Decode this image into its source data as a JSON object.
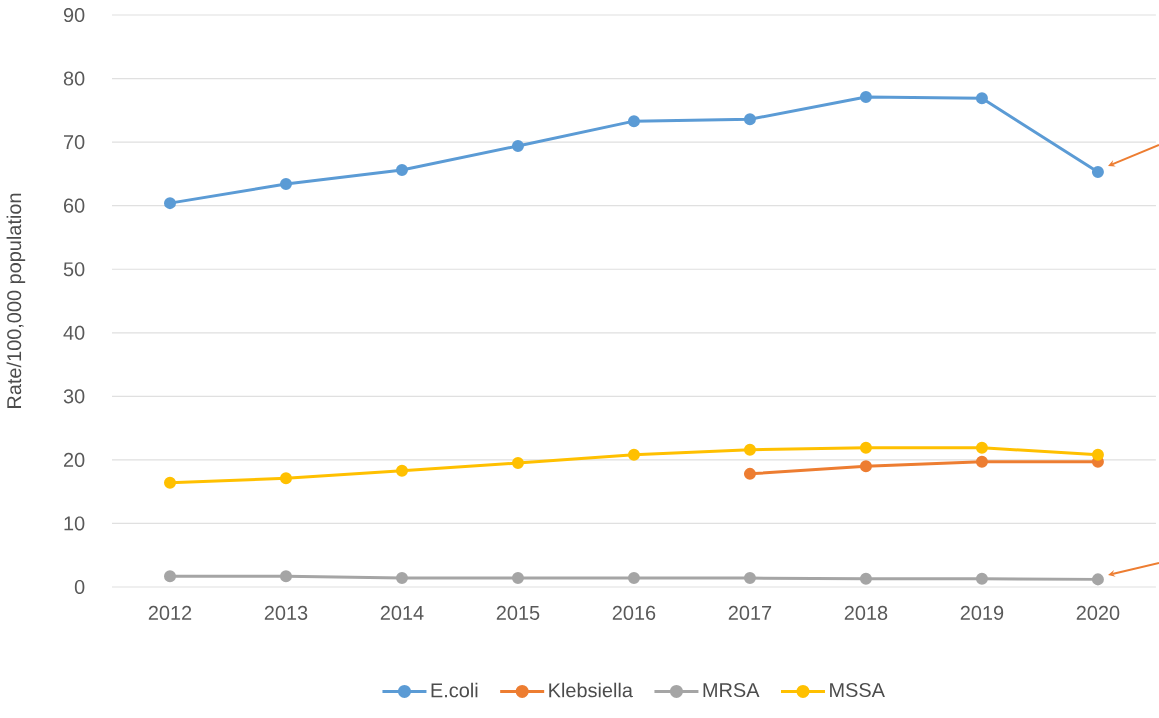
{
  "chart_data": {
    "type": "line",
    "ylabel": "Rate/100,000 population",
    "categories": [
      "2012",
      "2013",
      "2014",
      "2015",
      "2016",
      "2017",
      "2018",
      "2019",
      "2020"
    ],
    "series": [
      {
        "name": "E.coli",
        "color": "#5b9bd5",
        "values": [
          60.4,
          63.4,
          65.6,
          69.4,
          73.3,
          73.6,
          77.1,
          76.9,
          65.3
        ]
      },
      {
        "name": "Klebsiella",
        "color": "#ed7d31",
        "values": [
          null,
          null,
          null,
          null,
          null,
          17.8,
          19.0,
          19.7,
          19.7
        ]
      },
      {
        "name": "MRSA",
        "color": "#a5a5a5",
        "values": [
          1.7,
          1.7,
          1.4,
          1.4,
          1.4,
          1.4,
          1.3,
          1.3,
          1.2
        ]
      },
      {
        "name": "MSSA",
        "color": "#ffc000",
        "values": [
          16.4,
          17.1,
          18.3,
          19.5,
          20.8,
          21.6,
          21.9,
          21.9,
          20.8
        ]
      }
    ],
    "ylim": [
      0,
      90
    ],
    "yticks": [
      0,
      10,
      20,
      30,
      40,
      50,
      60,
      70,
      80,
      90
    ],
    "grid": "y",
    "legend": "bottom",
    "marker": "circle",
    "line_style": "solid"
  }
}
